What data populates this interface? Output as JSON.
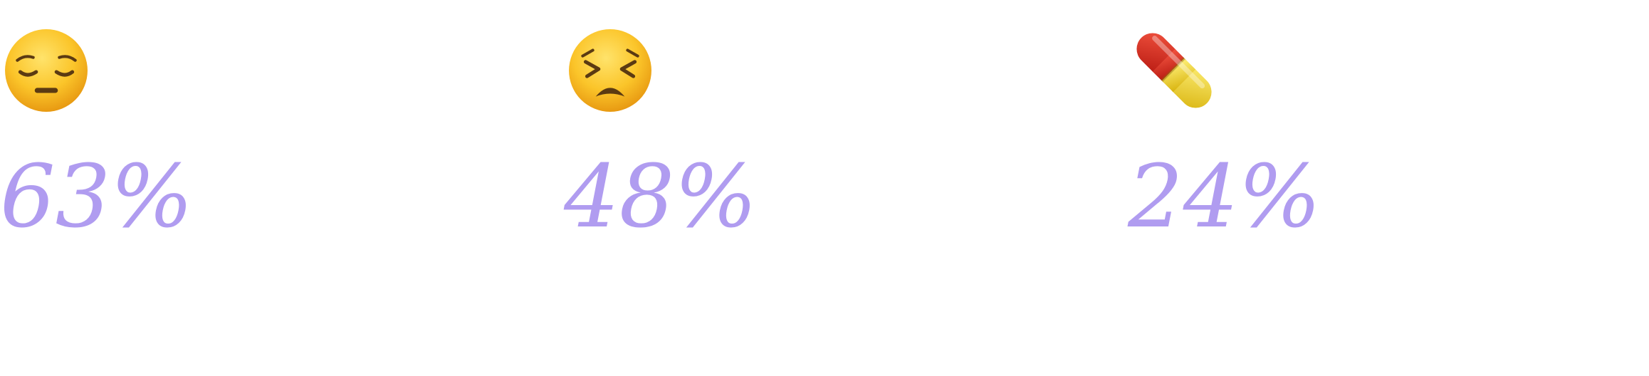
{
  "stats": [
    {
      "icon": "pensive-face-icon",
      "value": "63%"
    },
    {
      "icon": "persevering-face-icon",
      "value": "48%"
    },
    {
      "icon": "pill-icon",
      "value": "24%"
    }
  ],
  "colors": {
    "value_text": "#b09cf0",
    "emoji_face": "#f9c623",
    "pill_red": "#d8231a",
    "pill_yellow": "#f2d21e"
  }
}
